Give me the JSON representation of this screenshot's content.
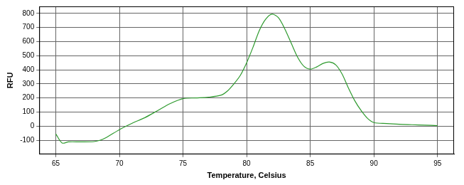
{
  "chart_data": {
    "type": "line",
    "x_label": "Temperature, Celsius",
    "y_label": "RFU",
    "x": [
      65,
      65.5,
      66,
      67,
      68,
      68.5,
      69,
      70,
      71,
      72,
      73,
      74,
      75,
      76,
      77,
      78,
      78.5,
      79,
      79.5,
      80,
      80.5,
      81,
      81.5,
      82,
      82.5,
      83,
      83.5,
      84,
      84.5,
      85,
      85.5,
      86,
      86.5,
      87,
      87.5,
      88,
      88.5,
      89,
      89.5,
      90,
      91,
      92,
      93,
      94,
      95
    ],
    "values": [
      -55,
      -120,
      -112,
      -112,
      -110,
      -100,
      -80,
      -25,
      20,
      60,
      110,
      160,
      195,
      200,
      205,
      220,
      250,
      300,
      360,
      450,
      560,
      680,
      760,
      795,
      770,
      690,
      590,
      490,
      425,
      405,
      420,
      445,
      455,
      435,
      370,
      270,
      180,
      110,
      55,
      25,
      18,
      13,
      10,
      7,
      3
    ],
    "color": "#2e9a2e",
    "xlim": [
      63.7,
      96.3
    ],
    "xticks": [
      65,
      70,
      75,
      80,
      85,
      90,
      95
    ],
    "ylim": [
      -200,
      850
    ],
    "yticks": [
      -100,
      0,
      100,
      200,
      300,
      400,
      500,
      600,
      700,
      800
    ],
    "grid": true,
    "marker": "none"
  }
}
